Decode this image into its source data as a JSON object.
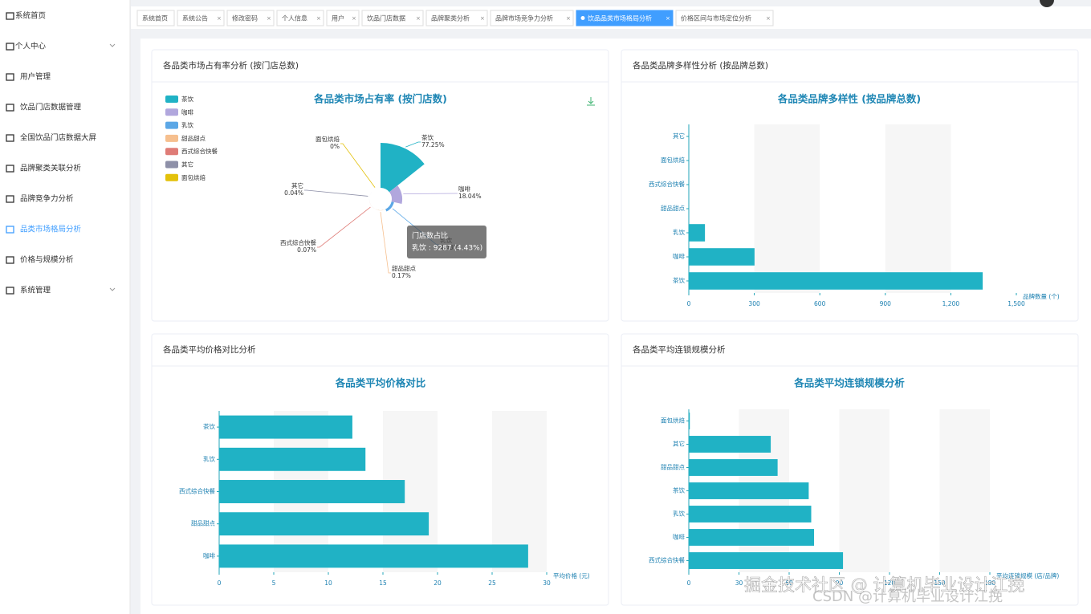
{
  "sidebar": {
    "items": [
      "系统首页",
      "个人中心",
      "用户管理",
      "饮品门店数据管理",
      "全国饮品门店数据大屏",
      "品牌聚类关联分析",
      "品牌竞争力分析",
      "品类市场格局分析",
      "价格与规模分析",
      "系统管理"
    ],
    "active": 7
  },
  "tabs": {
    "items": [
      "系统首页",
      "系统公告",
      "修改密码",
      "个人信息",
      "用户",
      "饮品门店数据",
      "品牌聚类分析",
      "品牌市场竞争力分析",
      "饮品品类市场格局分析",
      "价格区间与市场定位分析"
    ],
    "active": 8
  },
  "cards": [
    {
      "title": "各品类市场占有率分析 (按门店总数)"
    },
    {
      "title": "各品类品牌多样性分析 (按品牌总数)"
    },
    {
      "title": "各品类平均价格对比分析"
    },
    {
      "title": "各品类平均连锁规模分析"
    }
  ],
  "watermark": {
    "main": "掘金技术社区 @ 计算机毕业设计江挽",
    "sub": "CSDN @计算机毕业设计江挽"
  },
  "chart_data": [
    {
      "type": "pie",
      "rose": true,
      "title": "各品类市场占有率 (按门店数)",
      "categories": [
        "茶饮",
        "咖啡",
        "乳饮",
        "甜品甜点",
        "西式综合快餐",
        "其它",
        "面包烘焙"
      ],
      "values": [
        77.25,
        18.04,
        4.43,
        0.17,
        0.07,
        0.04,
        0
      ],
      "value_labels": [
        "77.25%",
        "18.04%",
        "4.43%",
        "0.17%",
        "0.07%",
        "0.04%",
        "0%"
      ],
      "colors": [
        "#20b2c5",
        "#b1a7dd",
        "#5ba7e6",
        "#f6bf8e",
        "#df7c77",
        "#8e90a8",
        "#e3c10a"
      ],
      "legend": "left",
      "tooltip": {
        "title": "门店数占比",
        "text": "乳饮 : 9287 (4.43%)"
      }
    },
    {
      "type": "hbar",
      "title": "各品类品牌多样性 (按品牌总数)",
      "categories": [
        "茶饮",
        "咖啡",
        "乳饮",
        "甜品甜点",
        "西式综合快餐",
        "面包烘焙",
        "其它"
      ],
      "values": [
        1346,
        301,
        74,
        0,
        0,
        0,
        0
      ],
      "color": "#20b2c5",
      "xlim": [
        0,
        1500
      ],
      "xticks": [
        0,
        300,
        600,
        900,
        {
          "value": 1200,
          "label": "1,200"
        },
        {
          "value": 1500,
          "label": "1,500"
        }
      ],
      "x_axis_label": "品牌数量 (个)",
      "grid": true
    },
    {
      "type": "hbar",
      "title": "各品类平均价格对比",
      "categories": [
        "咖啡",
        "甜品甜点",
        "西式综合快餐",
        "乳饮",
        "茶饮"
      ],
      "values": [
        28.3,
        19.2,
        17.0,
        13.4,
        12.2
      ],
      "color": "#20b2c5",
      "xlim": [
        0,
        30
      ],
      "xticks": [
        0,
        5,
        10,
        15,
        20,
        25,
        30
      ],
      "x_axis_label": "平均价格 (元)",
      "grid": true
    },
    {
      "type": "hbar",
      "title": "各品类平均连锁规模分析",
      "categories": [
        "西式综合快餐",
        "咖啡",
        "乳饮",
        "茶饮",
        "甜品甜点",
        "其它",
        "面包烘焙"
      ],
      "values": [
        92.2,
        74.9,
        73.2,
        71.7,
        53.1,
        49.0,
        0.6
      ],
      "color": "#20b2c5",
      "xlim": [
        0,
        180
      ],
      "xticks": [
        0,
        30,
        60,
        90,
        120,
        150,
        180
      ],
      "x_axis_label": "平均连锁规模 (店/品牌)",
      "grid": true
    }
  ]
}
